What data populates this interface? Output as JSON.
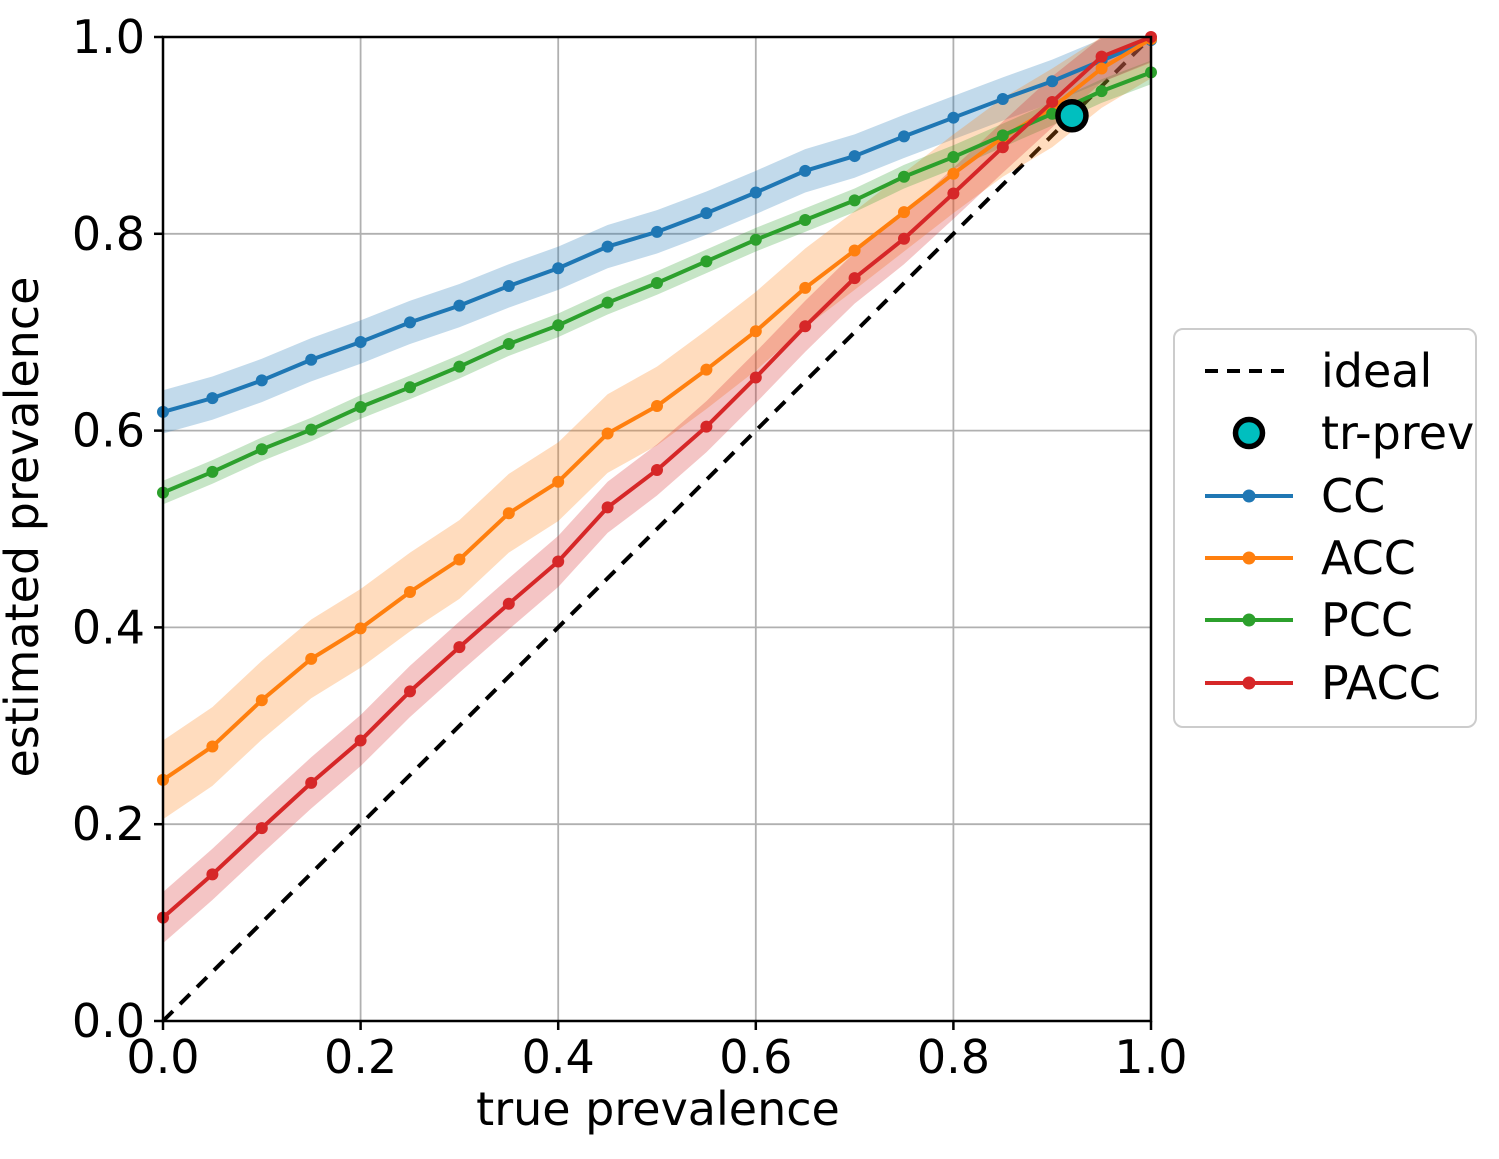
{
  "figure": {
    "xlabel": "true prevalence",
    "ylabel": "estimated prevalence"
  },
  "chart_data": {
    "type": "line",
    "title": "",
    "xlabel": "true prevalence",
    "ylabel": "estimated prevalence",
    "xlim": [
      0.0,
      1.0
    ],
    "ylim": [
      0.0,
      1.0
    ],
    "grid": true,
    "x_ticks": [
      "0.0",
      "0.2",
      "0.4",
      "0.6",
      "0.8",
      "1.0"
    ],
    "y_ticks": [
      "0.0",
      "0.2",
      "0.4",
      "0.6",
      "0.8",
      "1.0"
    ],
    "x": [
      0.0,
      0.05,
      0.1,
      0.15,
      0.2,
      0.25,
      0.3,
      0.35,
      0.4,
      0.45,
      0.5,
      0.55,
      0.6,
      0.65,
      0.7,
      0.75,
      0.8,
      0.85,
      0.9,
      0.95,
      1.0
    ],
    "series": [
      {
        "name": "CC",
        "color": "#1f77b4",
        "band_halfwidth": 0.022,
        "values": [
          0.619,
          0.633,
          0.651,
          0.672,
          0.69,
          0.71,
          0.727,
          0.747,
          0.765,
          0.787,
          0.802,
          0.821,
          0.842,
          0.864,
          0.879,
          0.899,
          0.918,
          0.937,
          0.955,
          0.976,
          0.997
        ]
      },
      {
        "name": "ACC",
        "color": "#ff7f0e",
        "band_halfwidth": 0.04,
        "values": [
          0.245,
          0.279,
          0.326,
          0.368,
          0.399,
          0.436,
          0.469,
          0.516,
          0.548,
          0.597,
          0.625,
          0.662,
          0.701,
          0.745,
          0.783,
          0.822,
          0.861,
          0.898,
          0.928,
          0.968,
          0.998
        ]
      },
      {
        "name": "PCC",
        "color": "#2ca02c",
        "band_halfwidth": 0.012,
        "values": [
          0.537,
          0.558,
          0.581,
          0.601,
          0.624,
          0.644,
          0.665,
          0.688,
          0.707,
          0.73,
          0.75,
          0.772,
          0.794,
          0.814,
          0.834,
          0.858,
          0.878,
          0.9,
          0.922,
          0.945,
          0.964
        ]
      },
      {
        "name": "PACC",
        "color": "#d62728",
        "band_halfwidth": 0.026,
        "values": [
          0.105,
          0.149,
          0.196,
          0.242,
          0.285,
          0.335,
          0.38,
          0.424,
          0.467,
          0.522,
          0.56,
          0.604,
          0.654,
          0.706,
          0.755,
          0.795,
          0.841,
          0.888,
          0.934,
          0.98,
          1.0
        ]
      }
    ],
    "ideal": {
      "label": "ideal",
      "x": [
        0.0,
        1.0
      ],
      "y": [
        0.0,
        1.0
      ],
      "color": "#000000",
      "style": "dashed"
    },
    "tr_prev": {
      "label": "tr-prev",
      "x": 0.92,
      "y": 0.92,
      "color": "#00bfbf",
      "edge_color": "#000000"
    },
    "legend_position": "right-outside"
  },
  "legend": {
    "items": [
      {
        "label": "ideal",
        "kind": "dashed-line",
        "color": "#000000"
      },
      {
        "label": "tr-prev",
        "kind": "marker",
        "color": "#00bfbf",
        "edge": "#000000"
      },
      {
        "label": "CC",
        "kind": "line-dot",
        "color": "#1f77b4"
      },
      {
        "label": "ACC",
        "kind": "line-dot",
        "color": "#ff7f0e"
      },
      {
        "label": "PCC",
        "kind": "line-dot",
        "color": "#2ca02c"
      },
      {
        "label": "PACC",
        "kind": "line-dot",
        "color": "#d62728"
      }
    ]
  },
  "style": {
    "grid_color": "#b0b0b0",
    "spine_color": "#000000",
    "background": "#ffffff"
  }
}
